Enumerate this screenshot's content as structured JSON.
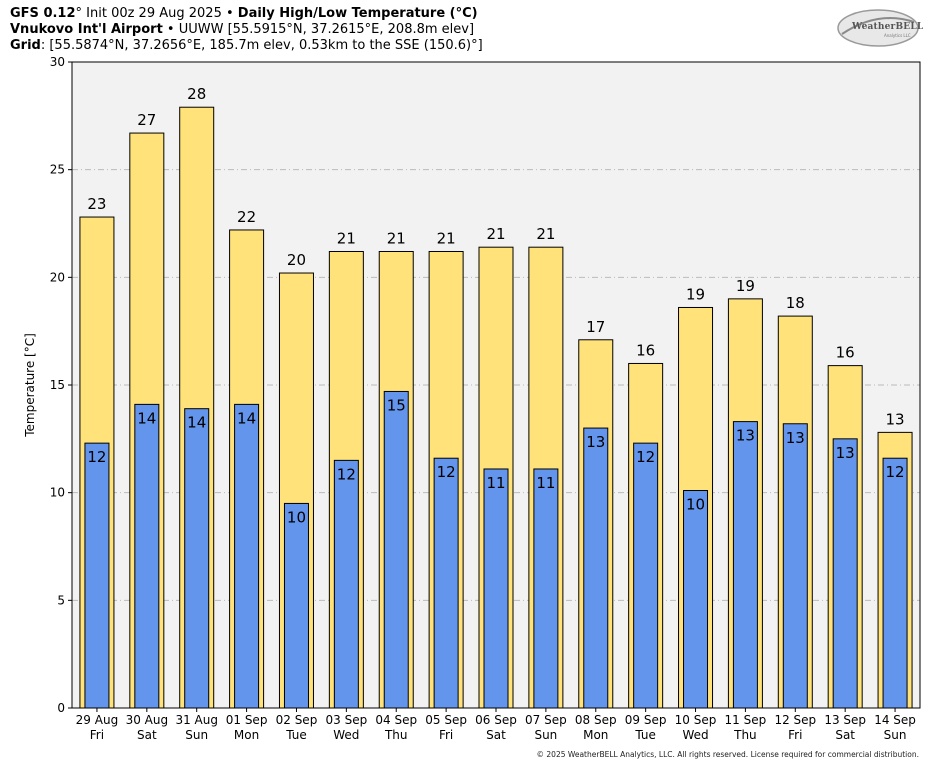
{
  "header": {
    "model": "GFS 0.12",
    "deg": "°",
    "init": " Init 00z 29 Aug 2025 • ",
    "product": "Daily High/Low Temperature (°C)",
    "station_name": "Vnukovo Int'l Airport",
    "station_info": " • UUWW [55.5915°N, 37.2615°E, 208.8m elev]",
    "grid_label": "Grid",
    "grid_info": ": [55.5874°N, 37.2656°E, 185.7m elev, 0.53km to the SSE (150.6)°]"
  },
  "logo": {
    "text": "WeatherBELL",
    "sub": "Analytics LLC"
  },
  "copyright": "© 2025 WeatherBELL Analytics, LLC. All rights reserved. License required for commercial distribution.",
  "colors": {
    "high": "#ffe27a",
    "low": "#6495ed",
    "plot_bg": "#f2f2f2",
    "grid": "#bbbbbb"
  },
  "chart_data": {
    "type": "bar",
    "ylabel": "Temperature [°C]",
    "ylim": [
      0,
      30
    ],
    "yticks": [
      0,
      5,
      10,
      15,
      20,
      25,
      30
    ],
    "grid": true,
    "categories": [
      {
        "date": "29 Aug",
        "day": "Fri"
      },
      {
        "date": "30 Aug",
        "day": "Sat"
      },
      {
        "date": "31 Aug",
        "day": "Sun"
      },
      {
        "date": "01 Sep",
        "day": "Mon"
      },
      {
        "date": "02 Sep",
        "day": "Tue"
      },
      {
        "date": "03 Sep",
        "day": "Wed"
      },
      {
        "date": "04 Sep",
        "day": "Thu"
      },
      {
        "date": "05 Sep",
        "day": "Fri"
      },
      {
        "date": "06 Sep",
        "day": "Sat"
      },
      {
        "date": "07 Sep",
        "day": "Sun"
      },
      {
        "date": "08 Sep",
        "day": "Mon"
      },
      {
        "date": "09 Sep",
        "day": "Tue"
      },
      {
        "date": "10 Sep",
        "day": "Wed"
      },
      {
        "date": "11 Sep",
        "day": "Thu"
      },
      {
        "date": "12 Sep",
        "day": "Fri"
      },
      {
        "date": "13 Sep",
        "day": "Sat"
      },
      {
        "date": "14 Sep",
        "day": "Sun"
      }
    ],
    "high": [
      22.8,
      26.7,
      27.9,
      22.2,
      20.2,
      21.2,
      21.2,
      21.2,
      21.4,
      21.4,
      17.1,
      16.0,
      18.6,
      19.0,
      18.2,
      15.9,
      12.8
    ],
    "low": [
      12.3,
      14.1,
      13.9,
      14.1,
      9.5,
      11.5,
      14.7,
      11.6,
      11.1,
      11.1,
      13.0,
      12.3,
      10.1,
      13.3,
      13.2,
      12.5,
      11.6
    ],
    "high_labels": [
      "23",
      "27",
      "28",
      "22",
      "20",
      "21",
      "21",
      "21",
      "21",
      "21",
      "17",
      "16",
      "19",
      "19",
      "18",
      "16",
      "13"
    ],
    "low_labels": [
      "12",
      "14",
      "14",
      "14",
      "10",
      "12",
      "15",
      "12",
      "11",
      "11",
      "13",
      "12",
      "10",
      "13",
      "13",
      "13",
      "12"
    ]
  }
}
